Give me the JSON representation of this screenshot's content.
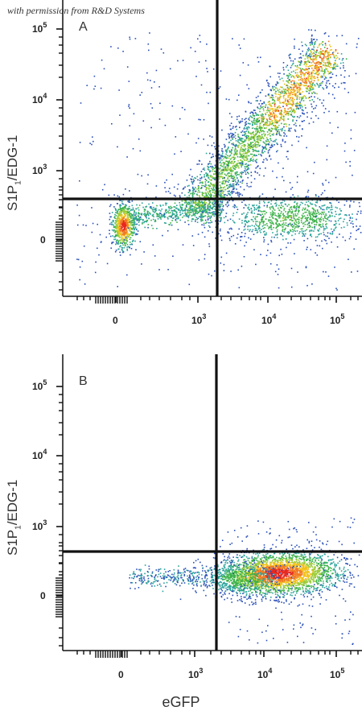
{
  "watermark": "with permission from R&D Systems",
  "x_axis_label": "eGFP",
  "chart_data": [
    {
      "type": "scatter",
      "panel_label": "A",
      "ylabel": "S1P1/EDG-1",
      "ylabel_main": "S1P",
      "ylabel_sub": "1",
      "ylabel_rest": "/EDG-1",
      "xlabel": "eGFP",
      "x_ticks": [
        {
          "base": "0",
          "exp": ""
        },
        {
          "base": "10",
          "exp": "3"
        },
        {
          "base": "10",
          "exp": "4"
        },
        {
          "base": "10",
          "exp": "5"
        }
      ],
      "y_ticks": [
        {
          "base": "0",
          "exp": ""
        },
        {
          "base": "10",
          "exp": "3"
        },
        {
          "base": "10",
          "exp": "4"
        },
        {
          "base": "10",
          "exp": "5"
        }
      ],
      "x_scale": "biexponential",
      "y_scale": "biexponential",
      "gate": {
        "x": 2000,
        "y": 400
      },
      "populations": [
        {
          "name": "double-negative",
          "x_center": 80,
          "y_center": 60,
          "spread": "tight",
          "density": "very high"
        },
        {
          "name": "eGFP-high S1P1-high diagonal",
          "x_range": [
            3000,
            70000
          ],
          "y_range": [
            600,
            50000
          ],
          "density": "high"
        },
        {
          "name": "eGFP-high S1P1-low",
          "x_range": [
            5000,
            80000
          ],
          "y_range": [
            30,
            400
          ],
          "density": "medium"
        }
      ]
    },
    {
      "type": "scatter",
      "panel_label": "B",
      "ylabel": "S1P1/EDG-1",
      "ylabel_main": "S1P",
      "ylabel_sub": "1",
      "ylabel_rest": "/EDG-1",
      "xlabel": "eGFP",
      "x_ticks": [
        {
          "base": "0",
          "exp": ""
        },
        {
          "base": "10",
          "exp": "3"
        },
        {
          "base": "10",
          "exp": "4"
        },
        {
          "base": "10",
          "exp": "5"
        }
      ],
      "y_ticks": [
        {
          "base": "0",
          "exp": ""
        },
        {
          "base": "10",
          "exp": "3"
        },
        {
          "base": "10",
          "exp": "4"
        },
        {
          "base": "10",
          "exp": "5"
        }
      ],
      "x_scale": "biexponential",
      "y_scale": "biexponential",
      "gate": {
        "x": 2000,
        "y": 400
      },
      "populations": [
        {
          "name": "eGFP-high S1P1-low",
          "x_range": [
            4000,
            60000
          ],
          "y_range": [
            30,
            300
          ],
          "density": "very high"
        },
        {
          "name": "eGFP-negative scatter",
          "x_range": [
            0,
            2000
          ],
          "y_range": [
            20,
            150
          ],
          "density": "low"
        }
      ]
    }
  ],
  "colors": {
    "background": "#ffffff",
    "axis": "#111111",
    "gate_line": "#111111",
    "density_low": "#2a4fb8",
    "density_mid": "#3cb24a",
    "density_high": "#f2c21a",
    "density_peak": "#e8281e"
  }
}
